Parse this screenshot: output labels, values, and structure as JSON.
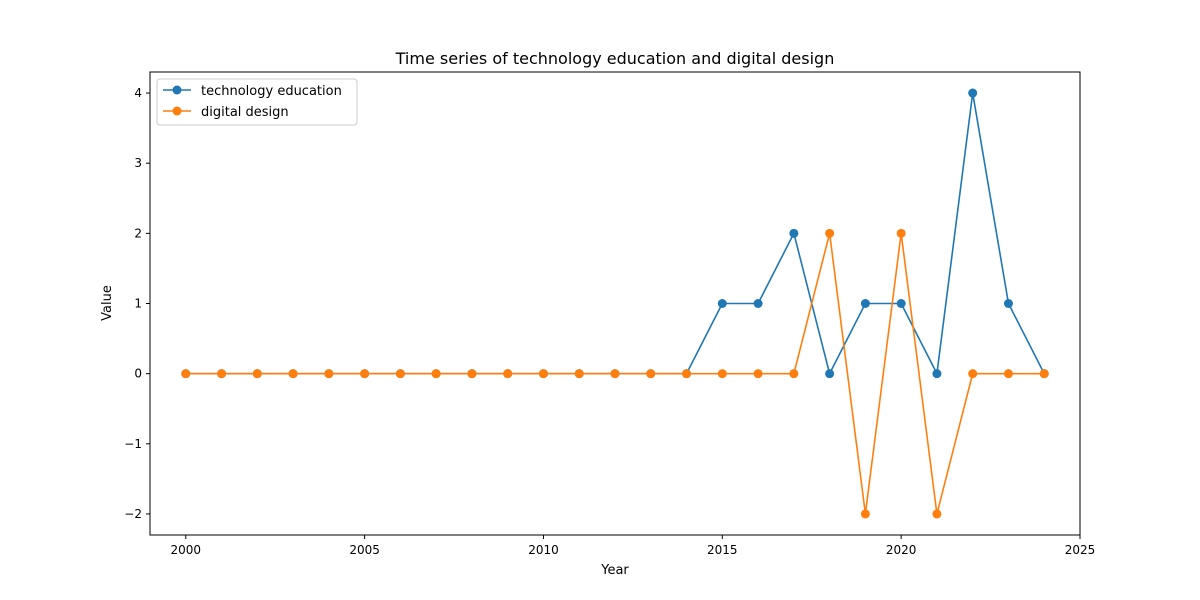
{
  "chart_data": {
    "type": "line",
    "title": "Time series of technology education and digital design",
    "xlabel": "Year",
    "ylabel": "Value",
    "x": [
      2000,
      2001,
      2002,
      2003,
      2004,
      2005,
      2006,
      2007,
      2008,
      2009,
      2010,
      2011,
      2012,
      2013,
      2014,
      2015,
      2016,
      2017,
      2018,
      2019,
      2020,
      2021,
      2022,
      2023,
      2024
    ],
    "xlim": [
      1999,
      2025
    ],
    "ylim": [
      -2.3,
      4.3
    ],
    "xticks": [
      2000,
      2005,
      2010,
      2015,
      2020,
      2025
    ],
    "yticks": [
      -2,
      -1,
      0,
      1,
      2,
      3,
      4
    ],
    "xtick_labels": [
      "2000",
      "2005",
      "2010",
      "2015",
      "2020",
      "2025"
    ],
    "ytick_labels": [
      "−2",
      "−1",
      "0",
      "1",
      "2",
      "3",
      "4"
    ],
    "grid": false,
    "legend_position": "top-left",
    "series": [
      {
        "name": "technology education",
        "color": "#1f77b4",
        "values": [
          0,
          0,
          0,
          0,
          0,
          0,
          0,
          0,
          0,
          0,
          0,
          0,
          0,
          0,
          0,
          1,
          1,
          2,
          0,
          1,
          1,
          0,
          4,
          1,
          0
        ]
      },
      {
        "name": "digital design",
        "color": "#ff7f0e",
        "values": [
          0,
          0,
          0,
          0,
          0,
          0,
          0,
          0,
          0,
          0,
          0,
          0,
          0,
          0,
          0,
          0,
          0,
          0,
          2,
          -2,
          2,
          -2,
          0,
          0,
          0
        ]
      }
    ]
  }
}
